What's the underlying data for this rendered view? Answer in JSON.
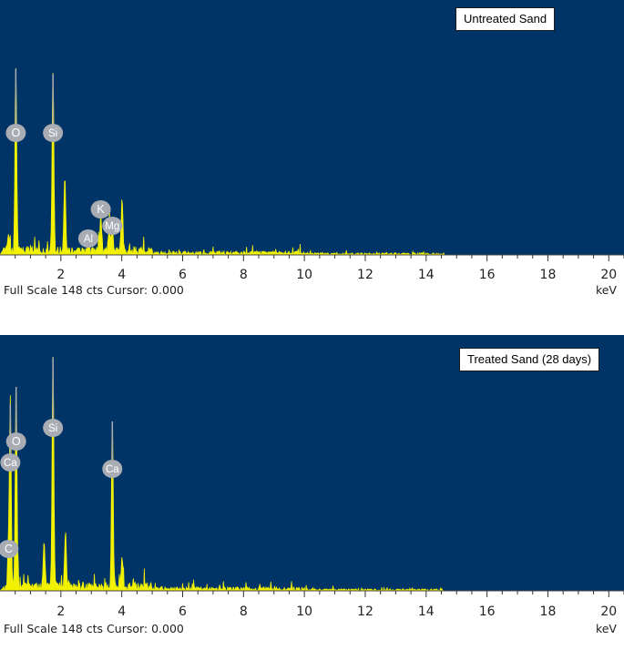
{
  "chart_data": [
    {
      "type": "line",
      "sample_label": "Untreated Sand",
      "status_text": "Full Scale 148 cts Cursor: 0.000",
      "x_unit": "keV",
      "xlim": [
        0,
        20.5
      ],
      "ylim": [
        0,
        148
      ],
      "x_ticks": [
        2,
        4,
        6,
        8,
        10,
        12,
        14,
        16,
        18,
        20
      ],
      "colors": {
        "background": "#003366",
        "spectrum": "#f2f200",
        "marker": "#a9adb3"
      },
      "peaks": [
        {
          "element": "O",
          "energy": 0.52,
          "counts": 108
        },
        {
          "element": "Si",
          "energy": 1.74,
          "counts": 105
        },
        {
          "element": "Al",
          "energy": 2.9,
          "counts": 6
        },
        {
          "element": "K",
          "energy": 3.31,
          "counts": 22
        },
        {
          "element": "Mg",
          "energy": 3.69,
          "counts": 14
        }
      ],
      "extra_peaks": [
        {
          "energy": 0.28,
          "counts": 10
        },
        {
          "energy": 2.13,
          "counts": 42
        },
        {
          "energy": 3.59,
          "counts": 18
        },
        {
          "energy": 4.01,
          "counts": 30
        }
      ]
    },
    {
      "type": "line",
      "sample_label": "Treated Sand (28 days)",
      "status_text": "Full Scale 148 cts Cursor: 0.000",
      "x_unit": "keV",
      "xlim": [
        0,
        20.5
      ],
      "ylim": [
        0,
        148
      ],
      "x_ticks": [
        2,
        4,
        6,
        8,
        10,
        12,
        14,
        16,
        18,
        20
      ],
      "colors": {
        "background": "#003366",
        "spectrum": "#f2f200",
        "marker": "#a9adb3"
      },
      "peaks": [
        {
          "element": "C",
          "energy": 0.28,
          "counts": 22
        },
        {
          "element": "Ca",
          "energy": 0.34,
          "counts": 108
        },
        {
          "element": "O",
          "energy": 0.53,
          "counts": 118
        },
        {
          "element": "Si",
          "energy": 1.74,
          "counts": 135
        },
        {
          "element": "Ca",
          "energy": 3.69,
          "counts": 98
        }
      ],
      "extra_peaks": [
        {
          "energy": 1.45,
          "counts": 28
        },
        {
          "energy": 2.15,
          "counts": 32
        },
        {
          "energy": 4.01,
          "counts": 18
        }
      ]
    }
  ]
}
